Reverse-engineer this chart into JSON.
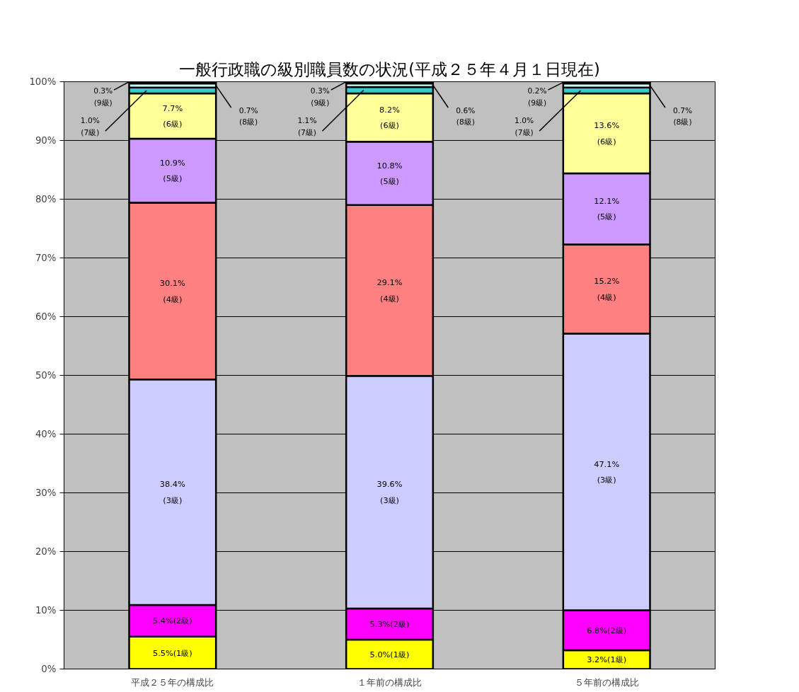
{
  "chart_data": {
    "type": "bar",
    "stacked": true,
    "title": "一般行政職の級別職員数の状況(平成２５年４月１日現在)",
    "categories": [
      "平成２５年の構成比",
      "１年前の構成比",
      "５年前の構成比"
    ],
    "ylim": [
      0,
      100
    ],
    "yticks": [
      {
        "value": 0,
        "label": "0%"
      },
      {
        "value": 10,
        "label": "10%"
      },
      {
        "value": 20,
        "label": "20%"
      },
      {
        "value": 30,
        "label": "30%"
      },
      {
        "value": 40,
        "label": "40%"
      },
      {
        "value": 50,
        "label": "50%"
      },
      {
        "value": 60,
        "label": "60%"
      },
      {
        "value": 70,
        "label": "70%"
      },
      {
        "value": 80,
        "label": "80%"
      },
      {
        "value": 90,
        "label": "90%"
      },
      {
        "value": 100,
        "label": "100%"
      }
    ],
    "grid": "y",
    "series": [
      {
        "color": "#ffff00",
        "values": [
          5.5,
          5.0,
          3.2
        ],
        "value_labels": [
          "5.5%(1級)",
          "5.0%(1級)",
          "3.2%(1級)"
        ]
      },
      {
        "color": "#ff00ff",
        "values": [
          5.4,
          5.3,
          6.8
        ],
        "value_labels": [
          "5.4%(2級)",
          "5.3%(2級)",
          "6.8%(2級)"
        ]
      },
      {
        "color": "#ccccff",
        "values": [
          38.4,
          39.6,
          47.1
        ],
        "value_labels": [
          "38.4%\n(3級)",
          "39.6%\n(3級)",
          "47.1%\n(3級)"
        ]
      },
      {
        "color": "#ff8080",
        "values": [
          30.1,
          29.1,
          15.2
        ],
        "value_labels": [
          "30.1%\n(4級)",
          "29.1%\n(4級)",
          "15.2%\n(4級)"
        ]
      },
      {
        "color": "#cc99ff",
        "values": [
          10.9,
          10.8,
          12.1
        ],
        "value_labels": [
          "10.9%\n(5級)",
          "10.8%\n(5級)",
          "12.1%\n(5級)"
        ]
      },
      {
        "color": "#ffff99",
        "values": [
          7.7,
          8.2,
          13.6
        ],
        "value_labels": [
          "7.7%\n(6級)",
          "8.2%\n(6級)",
          "13.6%\n(6級)"
        ]
      },
      {
        "color": "#33cccc",
        "values": [
          1.0,
          1.1,
          1.0
        ],
        "value_labels": [
          "1.0%\n(7級)",
          "1.1%\n(7級)",
          "1.0%\n(7級)"
        ]
      },
      {
        "color": "#ccffff",
        "values": [
          0.7,
          0.6,
          0.7
        ],
        "value_labels": [
          "0.7%\n(8級)",
          "0.6%\n(8級)",
          "0.7%\n(8級)"
        ]
      },
      {
        "color": "#000080",
        "values": [
          0.3,
          0.3,
          0.2
        ],
        "value_labels": [
          "0.3%\n(9級)",
          "0.3%\n(9級)",
          "0.2%\n(9級)"
        ]
      }
    ]
  }
}
